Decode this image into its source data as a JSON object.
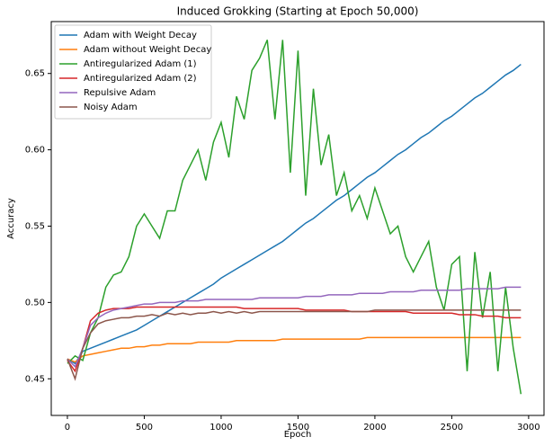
{
  "chart_data": {
    "type": "line",
    "title": "Induced Grokking (Starting at Epoch 50,000)",
    "x_label": "Epoch",
    "y_label": "Accuracy",
    "x": [
      0,
      50,
      100,
      150,
      200,
      250,
      300,
      350,
      400,
      450,
      500,
      550,
      600,
      650,
      700,
      750,
      800,
      850,
      900,
      950,
      1000,
      1050,
      1100,
      1150,
      1200,
      1250,
      1300,
      1350,
      1400,
      1450,
      1500,
      1550,
      1600,
      1650,
      1700,
      1750,
      1800,
      1850,
      1900,
      1950,
      2000,
      2050,
      2100,
      2150,
      2200,
      2250,
      2300,
      2350,
      2400,
      2450,
      2500,
      2550,
      2600,
      2650,
      2700,
      2750,
      2800,
      2850,
      2900,
      2950
    ],
    "series": [
      {
        "name": "Adam with Weight Decay",
        "color": "#1f77b4",
        "values": [
          0.463,
          0.46,
          0.468,
          0.47,
          0.472,
          0.474,
          0.476,
          0.478,
          0.48,
          0.482,
          0.485,
          0.488,
          0.491,
          0.494,
          0.497,
          0.5,
          0.503,
          0.506,
          0.509,
          0.512,
          0.516,
          0.519,
          0.522,
          0.525,
          0.528,
          0.531,
          0.534,
          0.537,
          0.54,
          0.544,
          0.548,
          0.552,
          0.555,
          0.559,
          0.563,
          0.567,
          0.57,
          0.574,
          0.578,
          0.582,
          0.585,
          0.589,
          0.593,
          0.597,
          0.6,
          0.604,
          0.608,
          0.611,
          0.615,
          0.619,
          0.622,
          0.626,
          0.63,
          0.634,
          0.637,
          0.641,
          0.645,
          0.649,
          0.652,
          0.656
        ]
      },
      {
        "name": "Adam without Weight Decay",
        "color": "#ff7f0e",
        "values": [
          0.463,
          0.461,
          0.465,
          0.466,
          0.467,
          0.468,
          0.469,
          0.47,
          0.47,
          0.471,
          0.471,
          0.472,
          0.472,
          0.473,
          0.473,
          0.473,
          0.473,
          0.474,
          0.474,
          0.474,
          0.474,
          0.474,
          0.475,
          0.475,
          0.475,
          0.475,
          0.475,
          0.475,
          0.476,
          0.476,
          0.476,
          0.476,
          0.476,
          0.476,
          0.476,
          0.476,
          0.476,
          0.476,
          0.476,
          0.477,
          0.477,
          0.477,
          0.477,
          0.477,
          0.477,
          0.477,
          0.477,
          0.477,
          0.477,
          0.477,
          0.477,
          0.477,
          0.477,
          0.477,
          0.477,
          0.477,
          0.477,
          0.477,
          0.477,
          0.477
        ]
      },
      {
        "name": "Antiregularized Adam (1)",
        "color": "#2ca02c",
        "values": [
          0.46,
          0.465,
          0.462,
          0.48,
          0.49,
          0.51,
          0.518,
          0.52,
          0.53,
          0.55,
          0.558,
          0.55,
          0.542,
          0.56,
          0.56,
          0.58,
          0.59,
          0.6,
          0.58,
          0.605,
          0.618,
          0.595,
          0.635,
          0.62,
          0.652,
          0.66,
          0.672,
          0.62,
          0.672,
          0.585,
          0.665,
          0.57,
          0.64,
          0.59,
          0.61,
          0.57,
          0.585,
          0.56,
          0.57,
          0.555,
          0.575,
          0.56,
          0.545,
          0.55,
          0.53,
          0.52,
          0.53,
          0.54,
          0.51,
          0.495,
          0.525,
          0.53,
          0.455,
          0.533,
          0.49,
          0.52,
          0.455,
          0.51,
          0.47,
          0.44
        ]
      },
      {
        "name": "Antiregularized Adam (2)",
        "color": "#d62728",
        "values": [
          0.462,
          0.455,
          0.47,
          0.488,
          0.493,
          0.495,
          0.496,
          0.496,
          0.496,
          0.497,
          0.497,
          0.497,
          0.497,
          0.497,
          0.497,
          0.497,
          0.497,
          0.497,
          0.497,
          0.497,
          0.497,
          0.497,
          0.497,
          0.496,
          0.496,
          0.496,
          0.496,
          0.496,
          0.496,
          0.496,
          0.496,
          0.495,
          0.495,
          0.495,
          0.495,
          0.495,
          0.495,
          0.494,
          0.494,
          0.494,
          0.494,
          0.494,
          0.494,
          0.494,
          0.494,
          0.493,
          0.493,
          0.493,
          0.493,
          0.493,
          0.493,
          0.492,
          0.492,
          0.492,
          0.491,
          0.491,
          0.491,
          0.49,
          0.49,
          0.49
        ]
      },
      {
        "name": "Repulsive Adam",
        "color": "#9467bd",
        "values": [
          0.463,
          0.458,
          0.47,
          0.485,
          0.49,
          0.493,
          0.495,
          0.496,
          0.497,
          0.498,
          0.499,
          0.499,
          0.5,
          0.5,
          0.5,
          0.501,
          0.501,
          0.501,
          0.502,
          0.502,
          0.502,
          0.502,
          0.502,
          0.502,
          0.502,
          0.503,
          0.503,
          0.503,
          0.503,
          0.503,
          0.503,
          0.504,
          0.504,
          0.504,
          0.505,
          0.505,
          0.505,
          0.505,
          0.506,
          0.506,
          0.506,
          0.506,
          0.507,
          0.507,
          0.507,
          0.507,
          0.508,
          0.508,
          0.508,
          0.508,
          0.508,
          0.508,
          0.509,
          0.509,
          0.509,
          0.509,
          0.509,
          0.51,
          0.51,
          0.51
        ]
      },
      {
        "name": "Noisy Adam",
        "color": "#8c564b",
        "values": [
          0.463,
          0.45,
          0.47,
          0.48,
          0.486,
          0.488,
          0.489,
          0.49,
          0.49,
          0.491,
          0.491,
          0.492,
          0.491,
          0.493,
          0.492,
          0.493,
          0.492,
          0.493,
          0.493,
          0.494,
          0.493,
          0.494,
          0.493,
          0.494,
          0.493,
          0.494,
          0.494,
          0.494,
          0.494,
          0.494,
          0.494,
          0.494,
          0.494,
          0.494,
          0.494,
          0.494,
          0.494,
          0.494,
          0.494,
          0.494,
          0.495,
          0.495,
          0.495,
          0.495,
          0.495,
          0.495,
          0.495,
          0.495,
          0.495,
          0.495,
          0.495,
          0.495,
          0.495,
          0.495,
          0.495,
          0.495,
          0.495,
          0.495,
          0.495,
          0.495
        ]
      }
    ],
    "xlim": [
      -105,
      3100
    ],
    "xticks": [
      0,
      500,
      1000,
      1500,
      2000,
      2500,
      3000
    ],
    "ylim": [
      0.426,
      0.684
    ],
    "yticks": [
      0.45,
      {
        "value": 0.5,
        "label": "0.50"
      },
      0.55,
      {
        "value": 0.6,
        "label": "0.60"
      },
      0.65
    ],
    "legend": "upper left",
    "grid": false
  }
}
